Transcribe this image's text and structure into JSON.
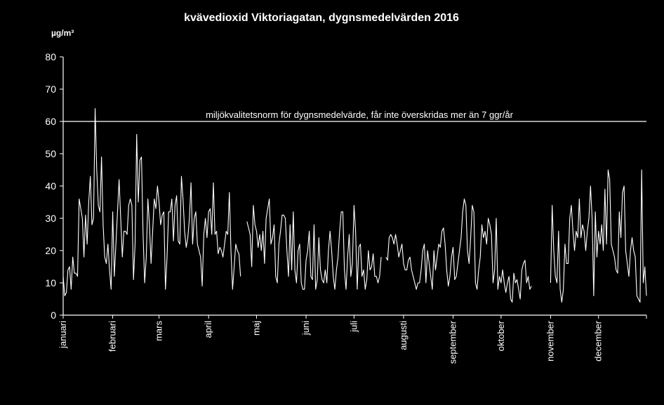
{
  "chart_data": {
    "type": "line",
    "title": "kvävedioxid Viktoriagatan, dygnsmedelvärden 2016",
    "ylabel": "µg/m³",
    "xlabel": "",
    "ylim": [
      0,
      80
    ],
    "yticks": [
      "0",
      "10",
      "20",
      "30",
      "40",
      "50",
      "60",
      "70",
      "80"
    ],
    "grid": false,
    "colors": {
      "background": "#000000",
      "line": "#ffffff",
      "text": "#ffffff"
    },
    "months": [
      "januari",
      "februari",
      "mars",
      "april",
      "maj",
      "juni",
      "juli",
      "augusti",
      "september",
      "oktober",
      "november",
      "december"
    ],
    "month_start_days": [
      1,
      32,
      61,
      92,
      122,
      153,
      183,
      214,
      245,
      275,
      306,
      336
    ],
    "threshold": {
      "value": 60,
      "label": "miljökvalitetsnorm för dygnsmedelvärde, får inte överskridas mer än 7 ggr/år"
    },
    "series": [
      {
        "x_start_day": 1,
        "values": [
          12,
          6,
          7,
          14,
          15,
          8,
          18,
          13,
          13,
          12,
          36,
          33,
          30,
          18,
          31,
          22,
          35,
          43,
          28,
          30,
          64,
          45,
          34,
          32,
          49,
          28,
          18,
          16,
          22,
          14,
          8,
          32,
          12,
          22,
          32,
          42,
          30,
          18,
          26,
          26,
          25,
          34,
          36,
          34,
          11,
          22,
          56,
          35,
          48,
          49,
          25,
          10,
          18,
          36,
          28,
          16,
          26,
          36,
          33,
          40,
          35,
          28,
          31,
          32,
          8,
          18,
          32,
          32,
          36,
          23,
          34,
          37,
          23,
          22,
          43,
          36,
          26,
          21,
          24,
          30,
          41,
          22,
          30,
          32,
          22,
          20,
          18,
          9,
          25,
          30,
          24,
          32,
          33,
          25,
          41,
          25,
          26,
          19,
          21,
          20,
          18,
          22,
          26,
          25,
          38,
          20,
          8,
          15,
          22,
          20,
          19,
          12,
          null,
          null,
          null,
          29,
          27,
          25,
          15,
          34,
          28,
          26,
          21,
          25,
          20,
          26,
          16,
          30,
          33,
          36,
          22,
          24,
          28,
          12,
          10,
          22,
          26,
          31,
          31,
          30,
          20,
          12,
          28,
          14,
          32,
          14,
          10,
          20,
          22,
          10,
          8,
          8,
          17,
          20,
          26,
          12,
          11,
          28,
          8,
          11,
          24,
          14,
          11,
          10,
          14,
          10,
          20,
          26,
          20,
          12,
          8,
          14,
          18,
          26,
          32,
          32,
          14,
          8,
          18,
          25,
          12,
          16,
          34,
          26,
          8,
          21,
          22,
          12,
          14,
          8,
          11,
          20,
          14,
          15,
          19,
          12,
          12,
          10,
          12,
          18,
          null,
          null,
          18,
          17,
          24,
          25,
          24,
          22,
          25,
          22,
          18,
          20,
          22,
          16,
          14,
          14,
          17,
          18,
          14,
          12,
          10,
          8,
          10,
          10,
          14,
          20,
          22,
          10,
          20,
          16,
          12,
          8,
          20,
          14,
          18,
          22,
          21,
          26,
          27,
          22,
          14,
          9,
          12,
          18,
          21,
          11,
          12,
          16,
          20,
          24,
          32,
          36,
          34,
          20,
          16,
          24,
          34,
          32,
          10,
          8,
          14,
          18,
          28,
          24,
          26,
          22,
          30,
          28,
          25,
          10,
          14,
          30,
          8,
          12,
          10,
          14,
          10,
          7,
          10,
          12,
          5,
          4,
          13,
          10,
          11,
          8,
          5,
          14,
          16,
          17,
          10,
          12,
          8,
          9,
          null,
          null,
          null,
          null,
          null,
          null,
          null,
          null,
          null,
          null,
          null,
          10,
          34,
          20,
          12,
          10,
          26,
          8,
          4,
          8,
          22,
          16,
          16,
          30,
          34,
          26,
          20,
          26,
          24,
          36,
          24,
          28,
          26,
          20,
          26,
          30,
          40,
          30,
          6,
          32,
          18,
          26,
          22,
          28,
          20,
          39,
          22,
          45,
          42,
          22,
          20,
          18,
          14,
          13,
          32,
          24,
          38,
          40,
          20,
          16,
          12,
          20,
          24,
          20,
          18,
          6,
          5,
          4,
          45,
          10,
          15,
          6
        ]
      }
    ]
  }
}
